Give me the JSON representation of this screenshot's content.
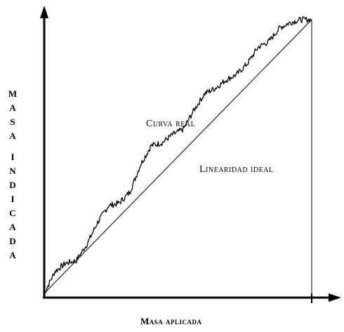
{
  "chart_data": {
    "type": "line",
    "xlabel": "Masa aplicada",
    "ylabel": "Masa indicada",
    "ylabel_words": [
      "Masa",
      "indicada"
    ],
    "xlim": [
      0,
      1
    ],
    "ylim": [
      0,
      1
    ],
    "grid": false,
    "series": [
      {
        "name": "Curva real",
        "x": [
          0,
          0.04,
          0.08,
          0.12,
          0.16,
          0.2,
          0.24,
          0.28,
          0.32,
          0.36,
          0.4,
          0.44,
          0.48,
          0.52,
          0.56,
          0.6,
          0.64,
          0.68,
          0.72,
          0.76,
          0.8,
          0.84,
          0.88,
          0.92,
          0.96,
          1.0
        ],
        "y": [
          0,
          0.08,
          0.11,
          0.12,
          0.18,
          0.26,
          0.32,
          0.33,
          0.37,
          0.47,
          0.54,
          0.55,
          0.58,
          0.6,
          0.67,
          0.73,
          0.75,
          0.78,
          0.8,
          0.84,
          0.9,
          0.92,
          0.97,
          0.99,
          1.0,
          1.0
        ],
        "color": "#000000"
      },
      {
        "name": "Linearidad ideal",
        "x": [
          0,
          1
        ],
        "y": [
          0,
          1
        ],
        "color": "#000000"
      }
    ],
    "annotations": [
      {
        "text": "Curva real",
        "x": 0.4,
        "y": 0.63
      },
      {
        "text": "Linearidad ideal",
        "x": 0.58,
        "y": 0.47
      }
    ]
  }
}
